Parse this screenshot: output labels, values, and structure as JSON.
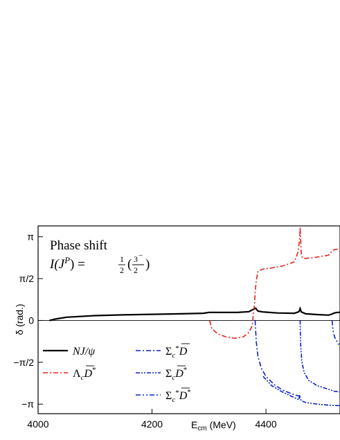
{
  "chart_data": {
    "type": "line",
    "annotation": {
      "line1": "Phase shift",
      "line2_prefix": "I(J",
      "line2_sup": "P",
      "line2_mid": ") = ",
      "frac1_num": "1",
      "frac1_den": "2",
      "frac2_num": "3",
      "frac2_den": "2",
      "frac2_sign": "−"
    },
    "ylabel": "δ (rad.)",
    "xlabel_main": "E",
    "xlabel_sub": "cm",
    "xlabel_unit": " (MeV)",
    "xlim": [
      4000,
      4530
    ],
    "ylim": [
      -3.5,
      3.55
    ],
    "x_ticks": [
      {
        "value": 4000,
        "label": "4000"
      },
      {
        "value": 4200,
        "label": "4200"
      },
      {
        "value": 4400,
        "label": "4400"
      }
    ],
    "y_ticks": [
      {
        "value": 3.14159,
        "label": "π"
      },
      {
        "value": 1.5708,
        "label": "π/2"
      },
      {
        "value": 0,
        "label": "0"
      },
      {
        "value": -1.5708,
        "label": "−π/2"
      },
      {
        "value": -3.14159,
        "label": "−π"
      }
    ],
    "legend": {
      "placement": "bottom-left",
      "entries": [
        {
          "label": "NJ/ψ",
          "series": 0
        },
        {
          "label": "Λ_c D̄*",
          "series": 1
        },
        {
          "label": "Σ_c* D̄",
          "series": 2
        },
        {
          "label": "Σ_c D̄*",
          "series": 3
        },
        {
          "label": "Σ_c* D̄*",
          "series": 4
        }
      ]
    },
    "series": [
      {
        "color": "#000000",
        "dash": "",
        "x": [
          4020,
          4030,
          4050,
          4100,
          4150,
          4200,
          4250,
          4290,
          4300,
          4320,
          4350,
          4370,
          4378,
          4382,
          4386,
          4395,
          4420,
          4450,
          4458,
          4460,
          4462,
          4470,
          4490,
          4510,
          4516,
          4520,
          4525,
          4530
        ],
        "y": [
          0.0,
          0.05,
          0.12,
          0.18,
          0.21,
          0.23,
          0.25,
          0.27,
          0.3,
          0.3,
          0.3,
          0.33,
          0.42,
          0.46,
          0.35,
          0.32,
          0.28,
          0.27,
          0.33,
          0.45,
          0.32,
          0.25,
          0.22,
          0.2,
          0.24,
          0.28,
          0.3,
          0.3
        ]
      },
      {
        "color": "#e4211c",
        "dash": "7 3 2 3",
        "x": [
          4301,
          4305,
          4315,
          4330,
          4345,
          4360,
          4370,
          4376,
          4378,
          4380,
          4381,
          4383,
          4386,
          4395,
          4410,
          4430,
          4450,
          4456,
          4459,
          4460,
          4461,
          4462,
          4464,
          4470,
          4490,
          4510,
          4515,
          4520,
          4530
        ],
        "y": [
          0.0,
          -0.3,
          -0.5,
          -0.62,
          -0.67,
          -0.62,
          -0.45,
          -0.2,
          0.3,
          0.6,
          1.05,
          1.5,
          1.85,
          1.93,
          1.97,
          2.05,
          2.2,
          2.55,
          3.0,
          3.5,
          3.0,
          2.5,
          2.35,
          2.33,
          2.38,
          2.45,
          2.58,
          2.66,
          2.68
        ]
      },
      {
        "color": "#0b1fc9",
        "dash": "7 3 2 3",
        "x": [
          4381,
          4383,
          4386,
          4392,
          4400,
          4415,
          4430,
          4445,
          4455,
          4460
        ],
        "y": [
          0.0,
          -0.8,
          -1.35,
          -1.8,
          -2.1,
          -2.42,
          -2.62,
          -2.75,
          -2.82,
          -2.85
        ]
      },
      {
        "color": "#0b1fc9",
        "dash": "6 2 2 2 2 2",
        "x": [
          4460,
          4461,
          4463,
          4467,
          4475,
          4490,
          4505,
          4515,
          4520,
          4530
        ],
        "y": [
          0.0,
          -0.9,
          -1.55,
          -1.95,
          -2.25,
          -2.45,
          -2.55,
          -2.62,
          -2.66,
          -2.68
        ]
      },
      {
        "color": "#0b1fc9",
        "dash": "7 3 2 3 2 3",
        "x": [
          4516,
          4518,
          4521,
          4526,
          4530
        ],
        "y": [
          0.0,
          -0.4,
          -0.65,
          -0.85,
          -0.95
        ]
      },
      {
        "color": "#0b1fc9",
        "dash": "6 2 2 2 2 2",
        "x": [
          4395,
          4410,
          4430,
          4450,
          4458,
          4459,
          4460,
          4462,
          4470,
          4490,
          4510,
          4530
        ],
        "y": [
          -2.1,
          -2.45,
          -2.7,
          -2.9,
          -2.98,
          -2.8,
          -2.9,
          -3.02,
          -3.08,
          -3.14,
          -3.18,
          -3.2
        ]
      }
    ]
  }
}
